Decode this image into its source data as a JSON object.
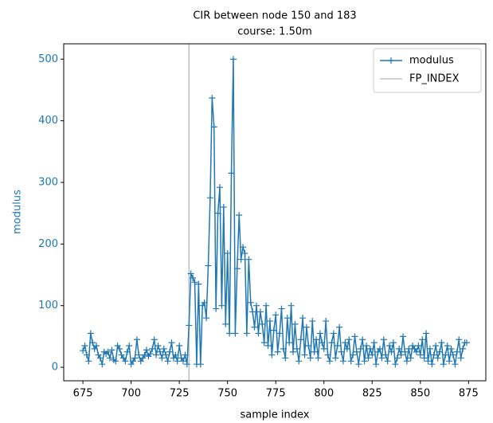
{
  "chart_data": {
    "type": "line",
    "title": "CIR between node 150 and 183",
    "subtitle": "course: 1.50m",
    "xlabel": "sample index",
    "ylabel": "modulus",
    "xlim": [
      665.05,
      883.95
    ],
    "ylim": [
      -21.9,
      524.9
    ],
    "xticks": [
      675,
      700,
      725,
      750,
      775,
      800,
      825,
      850,
      875
    ],
    "yticks": [
      0,
      100,
      200,
      300,
      400,
      500
    ],
    "legend": "upper right",
    "series": [
      {
        "name": "modulus",
        "color": "#1f77b4",
        "marker": "+",
        "x": [
          675,
          676,
          677,
          678,
          679,
          680,
          681,
          682,
          683,
          684,
          685,
          686,
          687,
          688,
          689,
          690,
          691,
          692,
          693,
          694,
          695,
          696,
          697,
          698,
          699,
          700,
          701,
          702,
          703,
          704,
          705,
          706,
          707,
          708,
          709,
          710,
          711,
          712,
          713,
          714,
          715,
          716,
          717,
          718,
          719,
          720,
          721,
          722,
          723,
          724,
          725,
          726,
          727,
          728,
          729,
          730,
          731,
          732,
          733,
          734,
          735,
          736,
          737,
          738,
          739,
          740,
          741,
          742,
          743,
          744,
          745,
          746,
          747,
          748,
          749,
          750,
          751,
          752,
          753,
          754,
          755,
          756,
          757,
          758,
          759,
          760,
          761,
          762,
          763,
          764,
          765,
          766,
          767,
          768,
          769,
          770,
          771,
          772,
          773,
          774,
          775,
          776,
          777,
          778,
          779,
          780,
          781,
          782,
          783,
          784,
          785,
          786,
          787,
          788,
          789,
          790,
          791,
          792,
          793,
          794,
          795,
          796,
          797,
          798,
          799,
          800,
          801,
          802,
          803,
          804,
          805,
          806,
          807,
          808,
          809,
          810,
          811,
          812,
          813,
          814,
          815,
          816,
          817,
          818,
          819,
          820,
          821,
          822,
          823,
          824,
          825,
          826,
          827,
          828,
          829,
          830,
          831,
          832,
          833,
          834,
          835,
          836,
          837,
          838,
          839,
          840,
          841,
          842,
          843,
          844,
          845,
          846,
          847,
          848,
          849,
          850,
          851,
          852,
          853,
          854,
          855,
          856,
          857,
          858,
          859,
          860,
          861,
          862,
          863,
          864,
          865,
          866,
          867,
          868,
          869,
          870,
          871,
          872,
          873,
          874
        ],
        "values": [
          27,
          35,
          20,
          10,
          55,
          40,
          30,
          35,
          20,
          15,
          5,
          25,
          22,
          25,
          15,
          28,
          12,
          10,
          35,
          30,
          20,
          15,
          10,
          25,
          35,
          5,
          10,
          15,
          45,
          20,
          10,
          15,
          20,
          28,
          18,
          22,
          30,
          45,
          20,
          35,
          25,
          15,
          30,
          20,
          10,
          25,
          40,
          15,
          20,
          10,
          35,
          15,
          10,
          20,
          5,
          68,
          152,
          145,
          138,
          5,
          135,
          5,
          100,
          105,
          80,
          165,
          275,
          437,
          390,
          95,
          250,
          292,
          100,
          260,
          70,
          185,
          55,
          315,
          500,
          55,
          160,
          247,
          175,
          195,
          185,
          55,
          175,
          105,
          90,
          65,
          100,
          55,
          90,
          70,
          40,
          100,
          35,
          75,
          20,
          60,
          85,
          25,
          55,
          95,
          30,
          15,
          80,
          40,
          100,
          25,
          70,
          30,
          10,
          45,
          80,
          20,
          65,
          35,
          15,
          75,
          25,
          45,
          15,
          55,
          40,
          30,
          75,
          20,
          10,
          40,
          55,
          15,
          35,
          65,
          25,
          10,
          40,
          30,
          45,
          10,
          20,
          50,
          25,
          5,
          30,
          45,
          10,
          35,
          15,
          30,
          20,
          40,
          5,
          25,
          30,
          15,
          45,
          20,
          10,
          35,
          25,
          40,
          5,
          15,
          30,
          20,
          50,
          25,
          10,
          30,
          15,
          35,
          30,
          25,
          35,
          20,
          45,
          15,
          55,
          10,
          30,
          5,
          20,
          35,
          15,
          25,
          40,
          5,
          20,
          35,
          10,
          30,
          20,
          5,
          25,
          45,
          15,
          30,
          40,
          40
        ]
      }
    ],
    "vline": {
      "name": "FP_INDEX",
      "color": "#c0c0c0",
      "x": 730
    }
  }
}
